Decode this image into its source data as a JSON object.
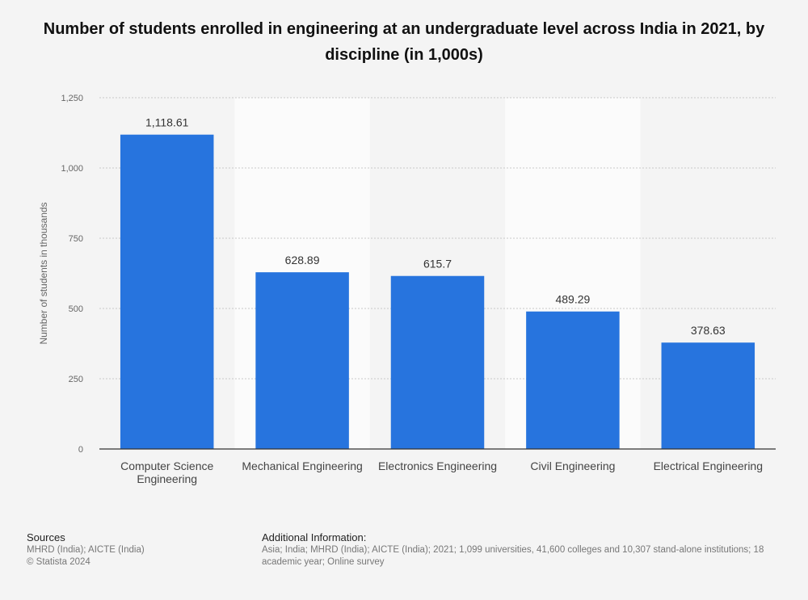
{
  "title": "Number of students enrolled in engineering at an undergraduate level across India in 2021, by discipline (in 1,000s)",
  "chart_data": {
    "type": "bar",
    "categories": [
      [
        "Computer Science",
        "Engineering"
      ],
      [
        "Mechanical Engineering"
      ],
      [
        "Electronics Engineering"
      ],
      [
        "Civil Engineering"
      ],
      [
        "Electrical Engineering"
      ]
    ],
    "values": [
      1118.61,
      628.89,
      615.7,
      489.29,
      378.63
    ],
    "value_labels": [
      "1,118.61",
      "628.89",
      "615.7",
      "489.29",
      "378.63"
    ],
    "ylabel": "Number of students in thousands",
    "ylim": [
      0,
      1250
    ],
    "yticks": [
      0,
      250,
      500,
      750,
      1000,
      1250
    ],
    "ytick_labels": [
      "0",
      "250",
      "500",
      "750",
      "1,000",
      "1,250"
    ],
    "bar_color": "#2774de",
    "grid": true
  },
  "footer": {
    "sources_heading": "Sources",
    "sources_line1": "MHRD (India); AICTE (India)",
    "sources_line2": "© Statista 2024",
    "info_heading": "Additional Information:",
    "info_line1": "Asia; India; MHRD (India); AICTE (India); 2021; 1,099 universities, 41,600 colleges and 10,307 stand-alone institutions; 18",
    "info_line2": "academic year; Online survey"
  }
}
